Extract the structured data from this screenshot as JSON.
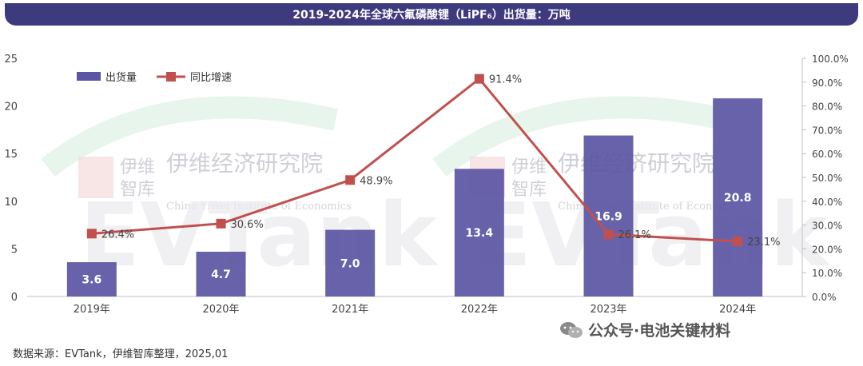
{
  "header": {
    "title": "2019-2024年全球六氟磷酸锂（LiPF₆）出货量：万吨"
  },
  "footer": {
    "source": "数据来源：EVTank，伊维智库整理，2025,01",
    "wechat_label": "公众号·电池关键材料"
  },
  "watermark": {
    "cn_name": "伊维经济研究院",
    "en_name": "China YiWei Institute of Economics",
    "think_tank": "伊维智库",
    "logo": "EVTank"
  },
  "colors": {
    "title_bg": "#3d3a7e",
    "bar": "#5b55a3",
    "line": "#c0504d"
  },
  "chart_data": {
    "type": "bar",
    "categories": [
      "2019年",
      "2020年",
      "2021年",
      "2022年",
      "2023年",
      "2024年"
    ],
    "series": [
      {
        "name": "出货量",
        "type": "bar",
        "axis": "left",
        "values": [
          3.6,
          4.7,
          7.0,
          13.4,
          16.9,
          20.8
        ],
        "labels": [
          "3.6",
          "4.7",
          "7.0",
          "13.4",
          "16.9",
          "20.8"
        ]
      },
      {
        "name": "同比增速",
        "type": "line",
        "axis": "right",
        "values": [
          26.4,
          30.6,
          48.9,
          91.4,
          26.1,
          23.1
        ],
        "labels": [
          "26.4%",
          "30.6%",
          "48.9%",
          "91.4%",
          "26.1%",
          "23.1%"
        ]
      }
    ],
    "y_left": {
      "min": 0,
      "max": 25,
      "ticks": [
        "0",
        "5",
        "10",
        "15",
        "20",
        "25"
      ]
    },
    "y_right": {
      "min": 0,
      "max": 100,
      "ticks": [
        "0.0%",
        "10.0%",
        "20.0%",
        "30.0%",
        "40.0%",
        "50.0%",
        "60.0%",
        "70.0%",
        "80.0%",
        "90.0%",
        "100.0%"
      ]
    },
    "legend": "top-left",
    "grid": false
  }
}
